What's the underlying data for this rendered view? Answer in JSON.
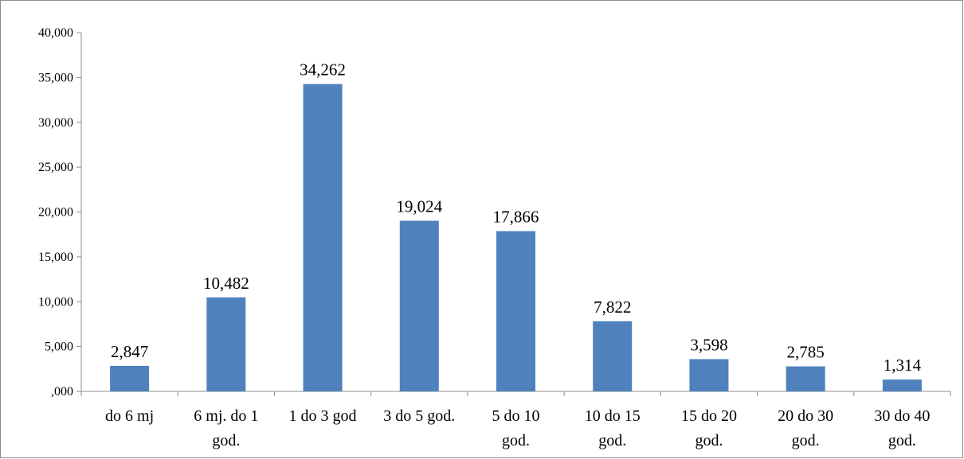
{
  "chart_data": {
    "type": "bar",
    "categories": [
      [
        "do 6 mj"
      ],
      [
        "6 mj. do 1",
        "god."
      ],
      [
        "1 do 3 god"
      ],
      [
        "3 do 5 god."
      ],
      [
        "5 do 10",
        "god."
      ],
      [
        "10 do 15",
        "god."
      ],
      [
        "15 do 20",
        "god."
      ],
      [
        "20 do 30",
        "god."
      ],
      [
        "30 do 40",
        "god."
      ]
    ],
    "values": [
      2847,
      10482,
      34262,
      19024,
      17866,
      7822,
      3598,
      2785,
      1314
    ],
    "data_labels": [
      "2,847",
      "10,482",
      "34,262",
      "19,024",
      "17,866",
      "7,822",
      "3,598",
      "2,785",
      "1,314"
    ],
    "y_ticks": [
      {
        "value": 0,
        "label": ",000"
      },
      {
        "value": 5000,
        "label": "5,000"
      },
      {
        "value": 10000,
        "label": "10,000"
      },
      {
        "value": 15000,
        "label": "15,000"
      },
      {
        "value": 20000,
        "label": "20,000"
      },
      {
        "value": 25000,
        "label": "25,000"
      },
      {
        "value": 30000,
        "label": "30,000"
      },
      {
        "value": 35000,
        "label": "35,000"
      },
      {
        "value": 40000,
        "label": "40,000"
      }
    ],
    "ylim": [
      0,
      40000
    ],
    "title": "",
    "xlabel": "",
    "ylabel": "",
    "grid": false,
    "legend": "none",
    "bar_color": "#4f81bd"
  }
}
